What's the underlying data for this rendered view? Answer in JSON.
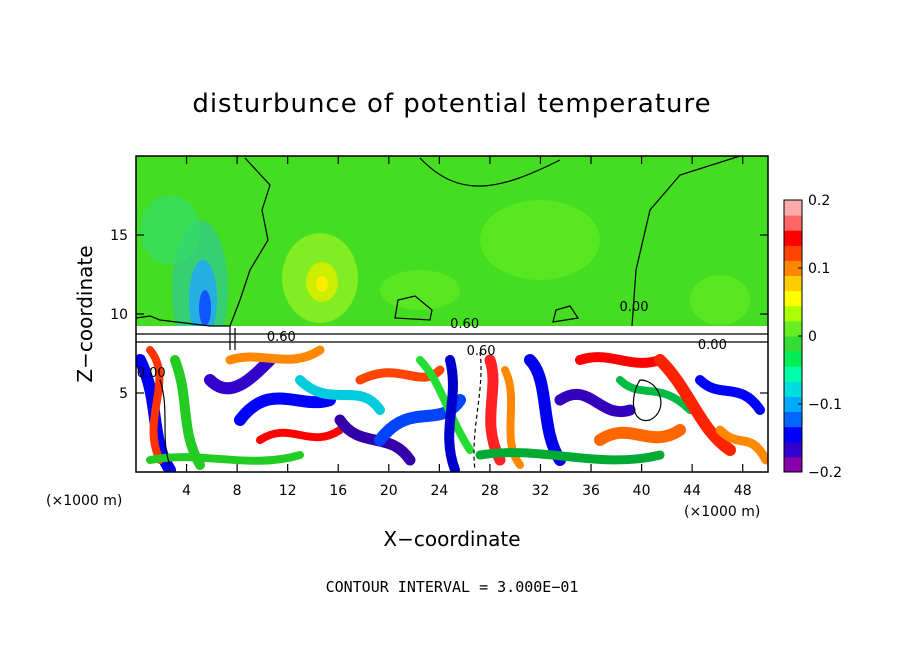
{
  "chart_data": {
    "type": "heatmap",
    "title": "disturbunce of potential temperature",
    "xlabel": "X−coordinate",
    "ylabel": "Z−coordinate",
    "x_unit": "(×1000 m)",
    "y_unit": "(×1000 m)",
    "xlim": [
      0,
      50
    ],
    "ylim": [
      0,
      20
    ],
    "x_ticks": [
      4,
      8,
      12,
      16,
      20,
      24,
      28,
      32,
      36,
      40,
      44,
      48
    ],
    "y_ticks": [
      5,
      10,
      15
    ],
    "colorbar": {
      "min": -0.2,
      "max": 0.2,
      "ticks": [
        0.2,
        0.1,
        0,
        -0.1,
        -0.2
      ],
      "tick_labels": [
        "0.2",
        "0.1",
        "0",
        "−0.1",
        "−0.2"
      ],
      "colors": [
        "#8800aa",
        "#3300cc",
        "#0000ff",
        "#0066ff",
        "#00aaff",
        "#00dddd",
        "#00ffaa",
        "#00ee55",
        "#33dd33",
        "#66ee22",
        "#aaff00",
        "#ffff00",
        "#ffcc00",
        "#ff8800",
        "#ff4400",
        "#ff0000",
        "#ff6666",
        "#ffaaaa"
      ]
    },
    "contour_labels": [
      {
        "text": "0.60",
        "x": 26,
        "z": 9.1
      },
      {
        "text": "0.00",
        "x": 39.4,
        "z": 10.2
      },
      {
        "text": "0.60",
        "x": 11.5,
        "z": 8.3
      },
      {
        "text": "0.60",
        "x": 27.3,
        "z": 7.4
      },
      {
        "text": "0.00",
        "x": 1.2,
        "z": 6
      },
      {
        "text": "0.00",
        "x": 45.6,
        "z": 7.8
      }
    ],
    "footer": "CONTOUR INTERVAL = 3.000E−01"
  }
}
